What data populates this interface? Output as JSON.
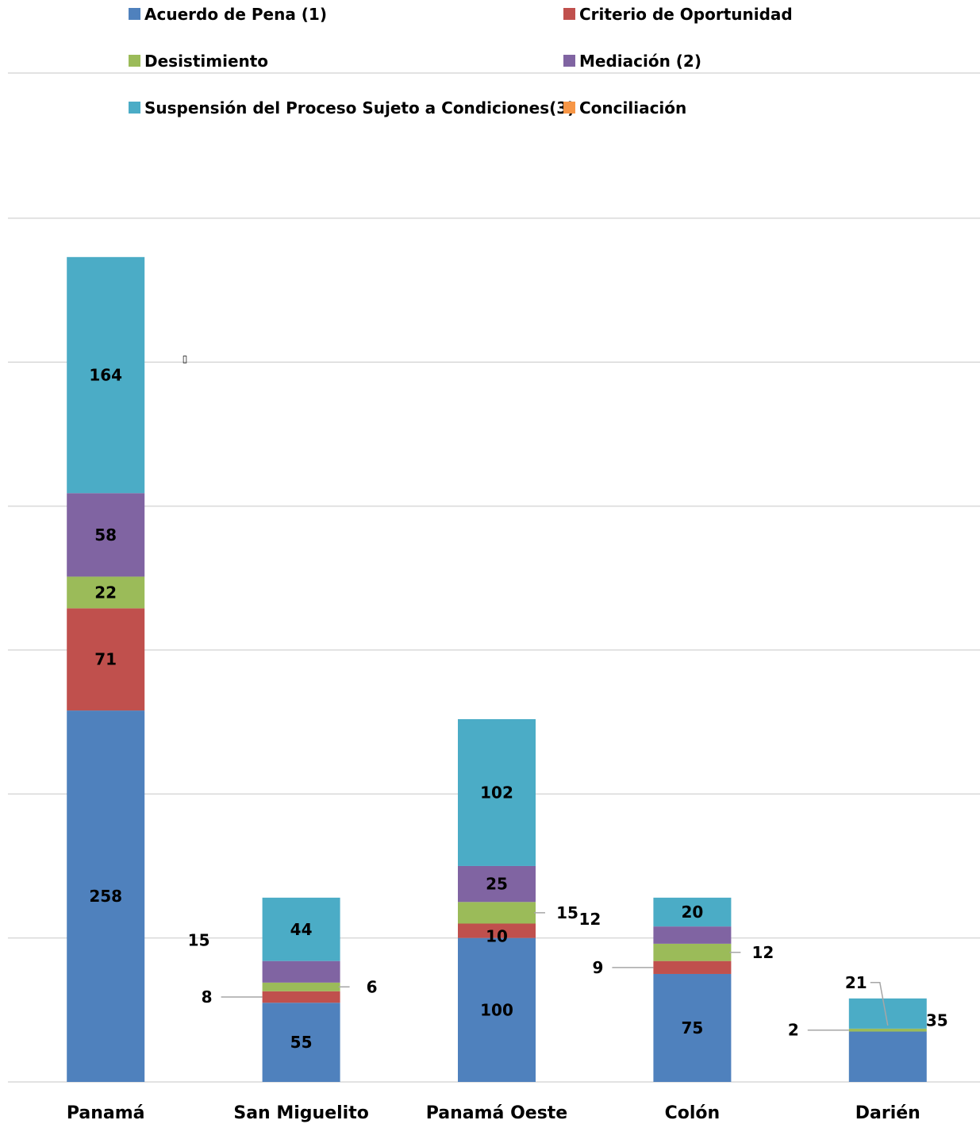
{
  "chart_data": {
    "type": "bar",
    "stacked": true,
    "title": "",
    "xlabel": "",
    "ylabel": "",
    "categories": [
      "Panamá",
      "San Miguelito",
      "Panamá Oeste",
      "Colón",
      "Darién"
    ],
    "series": [
      {
        "name": "Acuerdo de Pena (1)",
        "color": "#4F81BD",
        "values": [
          258,
          55,
          100,
          75,
          35
        ]
      },
      {
        "name": "Criterio de Oportunidad",
        "color": "#C0504D",
        "values": [
          71,
          8,
          10,
          9,
          0
        ]
      },
      {
        "name": "Desistimiento",
        "color": "#9BBB59",
        "values": [
          22,
          6,
          15,
          12,
          2
        ]
      },
      {
        "name": "Mediación (2)",
        "color": "#8064A2",
        "values": [
          58,
          15,
          25,
          12,
          0
        ]
      },
      {
        "name": "Suspensión del Proceso Sujeto a Condiciones(3)",
        "color": "#4BACC6",
        "values": [
          164,
          44,
          102,
          20,
          21
        ]
      },
      {
        "name": "Conciliación",
        "color": "#F79646",
        "values": [
          0,
          0,
          0,
          0,
          0
        ]
      }
    ],
    "ylim": [
      0,
      600
    ],
    "grid": true,
    "legend_position": "top",
    "data_labels": [
      [
        "258",
        "55",
        "100",
        "75",
        "35"
      ],
      [
        "71",
        "8",
        "10",
        "9",
        ""
      ],
      [
        "22",
        "6",
        "15",
        "12",
        "2"
      ],
      [
        "58",
        "15",
        "25",
        "12",
        ""
      ],
      [
        "164",
        "44",
        "102",
        "20",
        "21"
      ],
      [
        "",
        "",
        "",
        "",
        ""
      ]
    ]
  }
}
